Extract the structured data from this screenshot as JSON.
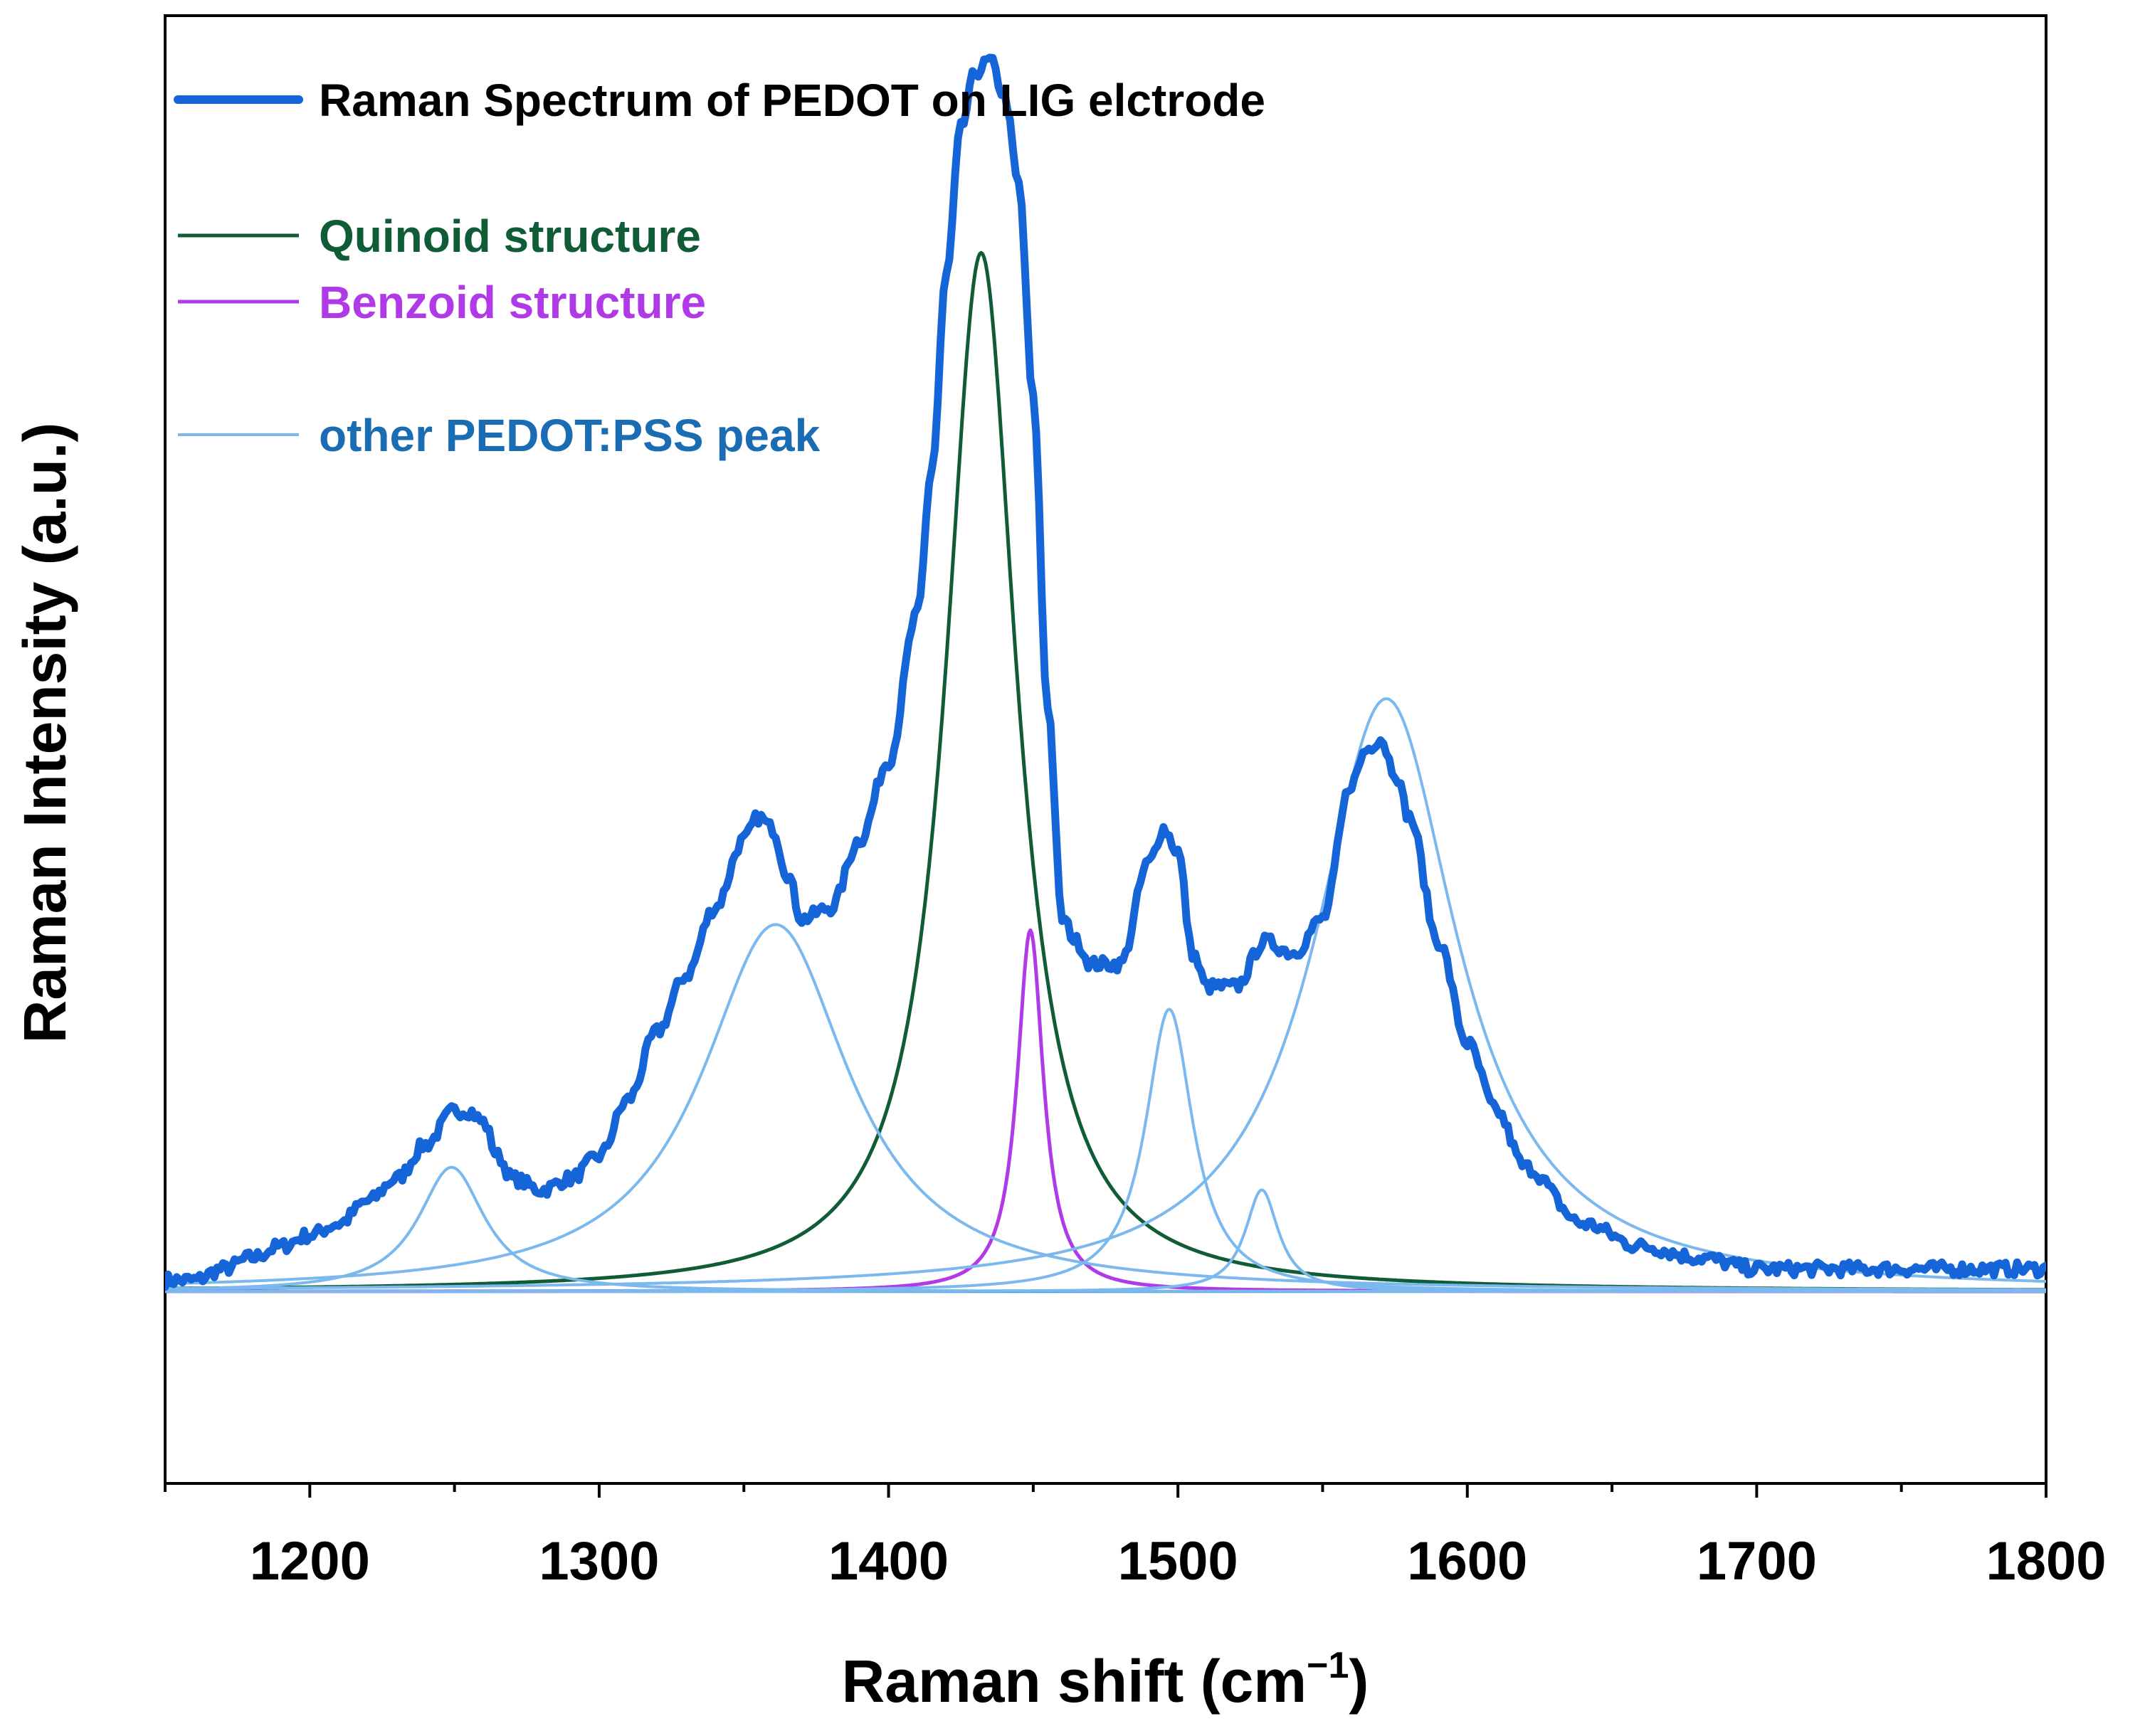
{
  "chart_data": {
    "type": "line",
    "xlabel": "Raman shift (cm",
    "xlabel_sup": "−1",
    "xlabel_close": ")",
    "ylabel": "Raman Intensity (a.u.)",
    "xlim": [
      1150,
      1800
    ],
    "ylim": [
      -0.17,
      1.13
    ],
    "x_ticks": [
      1200,
      1300,
      1400,
      1500,
      1600,
      1700,
      1800
    ],
    "x_tick_labels": [
      "1200",
      "1300",
      "1400",
      "1500",
      "1600",
      "1700",
      "1800"
    ],
    "y_ticks_shown": false,
    "grid": false,
    "legend_position": "top-left",
    "series": [
      {
        "name": "Raman Spectrum of PEDOT on LIG elctrode",
        "role": "measured",
        "color": "#1565d8",
        "x": [
          1150,
          1160,
          1170,
          1180,
          1190,
          1200,
          1210,
          1220,
          1230,
          1240,
          1250,
          1255,
          1260,
          1265,
          1270,
          1280,
          1290,
          1300,
          1310,
          1320,
          1330,
          1340,
          1350,
          1355,
          1360,
          1365,
          1370,
          1380,
          1390,
          1400,
          1410,
          1415,
          1420,
          1425,
          1430,
          1435,
          1440,
          1445,
          1450,
          1455,
          1460,
          1465,
          1470,
          1480,
          1490,
          1495,
          1500,
          1505,
          1510,
          1520,
          1530,
          1540,
          1550,
          1560,
          1565,
          1570,
          1575,
          1580,
          1590,
          1600,
          1610,
          1620,
          1640,
          1660,
          1680,
          1700,
          1720,
          1740,
          1760,
          1780,
          1800
        ],
        "y": [
          0.01,
          0.01,
          0.02,
          0.03,
          0.04,
          0.05,
          0.06,
          0.08,
          0.1,
          0.13,
          0.16,
          0.16,
          0.15,
          0.12,
          0.1,
          0.09,
          0.1,
          0.12,
          0.17,
          0.23,
          0.28,
          0.34,
          0.4,
          0.42,
          0.41,
          0.37,
          0.33,
          0.34,
          0.4,
          0.47,
          0.6,
          0.73,
          0.9,
          1.03,
          1.08,
          1.09,
          1.06,
          0.98,
          0.79,
          0.52,
          0.33,
          0.31,
          0.29,
          0.29,
          0.38,
          0.41,
          0.39,
          0.3,
          0.27,
          0.27,
          0.31,
          0.3,
          0.33,
          0.45,
          0.48,
          0.49,
          0.46,
          0.42,
          0.31,
          0.22,
          0.16,
          0.11,
          0.06,
          0.04,
          0.03,
          0.02,
          0.02,
          0.02,
          0.02,
          0.02,
          0.02
        ]
      },
      {
        "name": "Quinoid structure",
        "role": "fit",
        "color": "#0f5c36",
        "shape": "lorentzian",
        "center": 1432,
        "height": 0.92,
        "fwhm": 30
      },
      {
        "name": "Benzoid structure",
        "role": "fit",
        "color": "#b03ae8",
        "shape": "lorentzian",
        "center": 1449,
        "height": 0.32,
        "fwhm": 11
      },
      {
        "name": "other PEDOT:PSS peak",
        "role": "fit",
        "color": "#7ab8ee",
        "shape": "lorentzian",
        "components": [
          {
            "center": 1249,
            "height": 0.11,
            "fwhm": 28
          },
          {
            "center": 1361,
            "height": 0.325,
            "fwhm": 62
          },
          {
            "center": 1497,
            "height": 0.25,
            "fwhm": 20
          },
          {
            "center": 1529,
            "height": 0.09,
            "fwhm": 14
          },
          {
            "center": 1572,
            "height": 0.525,
            "fwhm": 60
          }
        ]
      }
    ],
    "legend": [
      {
        "label": "Raman Spectrum of PEDOT on LIG elctrode",
        "color": "#1565d8",
        "text_color": "#000000"
      },
      {
        "label": "Quinoid structure",
        "color": "#0f5c36",
        "text_color": "#0f5c36"
      },
      {
        "label": "Benzoid structure",
        "color": "#b03ae8",
        "text_color": "#b03ae8"
      },
      {
        "label": "other PEDOT:PSS peak",
        "color": "#7ab8ee",
        "text_color": "#1a6db3"
      }
    ]
  }
}
